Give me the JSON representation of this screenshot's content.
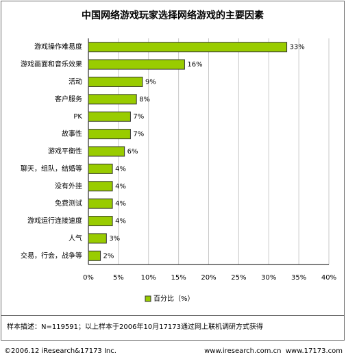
{
  "chart_data": {
    "type": "hbar",
    "title": "中国网络游戏玩家选择网络游戏的主要因素",
    "categories": [
      "游戏操作难易度",
      "游戏画面和音乐效果",
      "活动",
      "客户服务",
      "PK",
      "故事性",
      "游戏平衡性",
      "聊天，组队，结婚等",
      "没有外挂",
      "免费测试",
      "游戏运行连接速度",
      "人气",
      "交易，行会，战争等"
    ],
    "series": [
      {
        "name": "百分比（%）",
        "color": "#99cc00",
        "values": [
          33,
          16,
          9,
          8,
          7,
          7,
          6,
          4,
          4,
          4,
          4,
          3,
          2
        ],
        "value_labels": [
          "33%",
          "16%",
          "9%",
          "8%",
          "7%",
          "7%",
          "6%",
          "4%",
          "4%",
          "4%",
          "4%",
          "3%",
          "2%"
        ]
      }
    ],
    "xlim": [
      0,
      40
    ],
    "xticks": [
      {
        "value": 0,
        "label": "0%"
      },
      {
        "value": 5,
        "label": "5%"
      },
      {
        "value": 10,
        "label": "10%"
      },
      {
        "value": 15,
        "label": "15%"
      },
      {
        "value": 20,
        "label": "20%"
      },
      {
        "value": 25,
        "label": "25%"
      },
      {
        "value": 30,
        "label": "30%"
      },
      {
        "value": 35,
        "label": "35%"
      },
      {
        "value": 40,
        "label": "40%"
      }
    ],
    "grid": true,
    "note": "样本描述：N=119591；以上样本于2006年10月17173通过网上联机调研方式获得",
    "footer_left": "©2006.12 iResearch&17173 Inc.",
    "footer_right": "www.iresearch.com.cn  www.17173.com"
  }
}
